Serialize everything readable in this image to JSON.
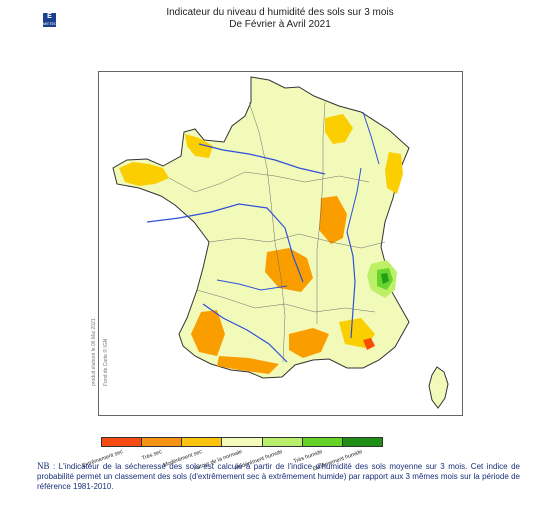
{
  "logo": {
    "glyph": "E",
    "text": "METEO FRANCE"
  },
  "header": {
    "title_line1": "Indicateur du niveau d humidité des sols sur 3 mois",
    "title_line2": "De Février à Avril 2021"
  },
  "credits": {
    "produced": "produit élaboré le 06 Mai 2021",
    "basemap": "Fond de Carte © IGN"
  },
  "colors": {
    "very_dry": "#fa4d00",
    "dry": "#fa9e00",
    "moderately_dry": "#fbce00",
    "near_normal": "#f1faba",
    "moderately_humid": "#bdf067",
    "very_humid": "#6ad42e",
    "extremely_humid": "#1f9e18",
    "rivers": "#2f50d9",
    "borders": "#333333"
  },
  "legend": [
    {
      "label": "Extrêmement sec",
      "color": "#f64b11"
    },
    {
      "label": "Très sec",
      "color": "#f59413"
    },
    {
      "label": "Modérément sec",
      "color": "#fac310"
    },
    {
      "label": "Autour de la normale",
      "color": "#f3faba"
    },
    {
      "label": "Modérément humide",
      "color": "#b9ee6c"
    },
    {
      "label": "Très humide",
      "color": "#63d425"
    },
    {
      "label": "Extrêmement humide",
      "color": "#1f9015"
    }
  ],
  "note": {
    "tag": "NB",
    "text": " : L'indicateur de la sécheresse des sols est calculé à partir de l'indice d'humidité des sols moyenne sur 3 mois. Cet indice de probabilité permet un classement des sols (d'extrêmement sec à extrêmement humide) par rapport aux 3 mêmes mois sur la période de référence 1981-2010."
  }
}
